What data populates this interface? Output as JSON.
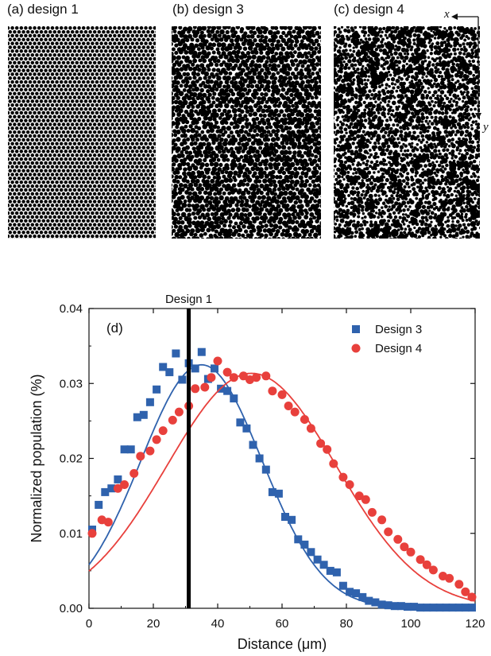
{
  "panels": [
    {
      "label": "(a) design 1"
    },
    {
      "label": "(b) design 3"
    },
    {
      "label": "(c) design 4"
    }
  ],
  "axis_hints": {
    "x": "x",
    "y": "y"
  },
  "colors": {
    "design3": "#2f62ad",
    "design4": "#e8403c",
    "dots": "#000000"
  },
  "chart_data": {
    "type": "scatter",
    "panel_label": "(d)",
    "xlabel": "Distance (μm)",
    "ylabel": "Normalized population (%)",
    "xlim": [
      0,
      120
    ],
    "ylim": [
      0,
      0.04
    ],
    "xticks": [
      0,
      20,
      40,
      60,
      80,
      100,
      120
    ],
    "yticks": [
      0.0,
      0.01,
      0.02,
      0.03,
      0.04
    ],
    "ytick_labels": [
      "0.00",
      "0.01",
      "0.02",
      "0.03",
      "0.04"
    ],
    "grid": false,
    "legend_position": "top-right",
    "vline": {
      "x": 31,
      "label": "Design 1"
    },
    "series": [
      {
        "name": "Design 3",
        "marker": "square",
        "color": "#2f62ad",
        "x": [
          1,
          3,
          5,
          7,
          9,
          11,
          13,
          15,
          17,
          19,
          21,
          23,
          25,
          27,
          29,
          31,
          33,
          35,
          37,
          39,
          41,
          43,
          45,
          47,
          49,
          51,
          53,
          55,
          57,
          59,
          61,
          63,
          65,
          67,
          69,
          71,
          73,
          75,
          77,
          79,
          81,
          83,
          85,
          87,
          89,
          91,
          93,
          95,
          97,
          99,
          101,
          103,
          105,
          107,
          109,
          111,
          113,
          115,
          117,
          119
        ],
        "y": [
          0.0105,
          0.0138,
          0.0155,
          0.016,
          0.0172,
          0.0212,
          0.0212,
          0.0255,
          0.0258,
          0.0275,
          0.0292,
          0.0322,
          0.0315,
          0.034,
          0.0305,
          0.0327,
          0.032,
          0.0342,
          0.0306,
          0.032,
          0.0293,
          0.029,
          0.028,
          0.0248,
          0.024,
          0.0218,
          0.02,
          0.0185,
          0.0155,
          0.0153,
          0.0122,
          0.0118,
          0.0092,
          0.0085,
          0.0075,
          0.0065,
          0.0058,
          0.005,
          0.0048,
          0.003,
          0.0022,
          0.002,
          0.0015,
          0.001,
          0.0008,
          0.0005,
          0.0004,
          0.0003,
          0.0003,
          0.0002,
          0.0002,
          0.0001,
          0.0001,
          0.0001,
          0.0001,
          0.0001,
          0.0001,
          0.0001,
          0.0001,
          0.0001
        ]
      },
      {
        "name": "Design 4",
        "marker": "circle",
        "color": "#e8403c",
        "x": [
          1,
          4,
          6,
          9,
          11,
          14,
          16,
          19,
          21,
          23,
          26,
          28,
          31,
          33,
          36,
          38,
          40,
          43,
          45,
          48,
          50,
          52,
          55,
          57,
          60,
          62,
          64,
          67,
          69,
          72,
          74,
          76,
          79,
          81,
          84,
          86,
          88,
          91,
          93,
          96,
          98,
          100,
          103,
          105,
          107,
          110,
          112,
          115,
          117,
          119
        ],
        "y": [
          0.01,
          0.0118,
          0.0115,
          0.016,
          0.0165,
          0.018,
          0.0203,
          0.021,
          0.0225,
          0.0237,
          0.0251,
          0.0262,
          0.027,
          0.0293,
          0.0295,
          0.0308,
          0.033,
          0.0315,
          0.0308,
          0.031,
          0.0305,
          0.0308,
          0.031,
          0.029,
          0.0285,
          0.027,
          0.0262,
          0.0252,
          0.024,
          0.022,
          0.0212,
          0.0193,
          0.0175,
          0.0165,
          0.015,
          0.0145,
          0.0128,
          0.0118,
          0.0102,
          0.0092,
          0.0082,
          0.0075,
          0.0065,
          0.0058,
          0.0051,
          0.0043,
          0.004,
          0.0032,
          0.0022,
          0.0015
        ]
      }
    ]
  }
}
